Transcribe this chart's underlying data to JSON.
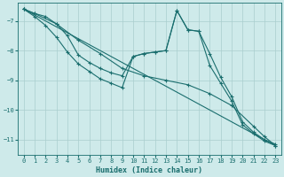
{
  "xlabel": "Humidex (Indice chaleur)",
  "background_color": "#ceeaea",
  "grid_color": "#aacece",
  "line_color": "#1a6e6e",
  "xlim": [
    -0.5,
    23.5
  ],
  "ylim": [
    -11.5,
    -6.4
  ],
  "yticks": [
    -7,
    -8,
    -9,
    -10,
    -11
  ],
  "xticks": [
    0,
    1,
    2,
    3,
    4,
    5,
    6,
    7,
    8,
    9,
    10,
    11,
    12,
    13,
    14,
    15,
    16,
    17,
    18,
    19,
    20,
    21,
    22,
    23
  ],
  "series1": [
    [
      0,
      -6.6
    ],
    [
      1,
      -6.75
    ],
    [
      2,
      -6.85
    ],
    [
      3,
      -7.1
    ],
    [
      4,
      -7.5
    ],
    [
      5,
      -8.15
    ],
    [
      6,
      -8.4
    ],
    [
      7,
      -8.6
    ],
    [
      8,
      -8.75
    ],
    [
      9,
      -8.85
    ],
    [
      10,
      -8.2
    ],
    [
      11,
      -8.1
    ],
    [
      12,
      -8.05
    ],
    [
      13,
      -8.0
    ],
    [
      14,
      -6.65
    ],
    [
      15,
      -7.3
    ],
    [
      16,
      -7.35
    ],
    [
      17,
      -8.1
    ],
    [
      18,
      -8.9
    ],
    [
      19,
      -9.55
    ],
    [
      20,
      -10.4
    ],
    [
      21,
      -10.75
    ],
    [
      22,
      -11.0
    ],
    [
      23,
      -11.15
    ]
  ],
  "series2": [
    [
      0,
      -6.6
    ],
    [
      1,
      -6.85
    ],
    [
      2,
      -7.15
    ],
    [
      3,
      -7.55
    ],
    [
      4,
      -8.05
    ],
    [
      5,
      -8.45
    ],
    [
      6,
      -8.7
    ],
    [
      7,
      -8.95
    ],
    [
      8,
      -9.1
    ],
    [
      9,
      -9.25
    ],
    [
      10,
      -8.2
    ],
    [
      11,
      -8.1
    ],
    [
      12,
      -8.05
    ],
    [
      13,
      -8.0
    ],
    [
      14,
      -6.65
    ],
    [
      15,
      -7.3
    ],
    [
      16,
      -7.35
    ],
    [
      17,
      -8.5
    ],
    [
      18,
      -9.1
    ],
    [
      19,
      -9.7
    ],
    [
      20,
      -10.5
    ],
    [
      21,
      -10.8
    ],
    [
      22,
      -11.05
    ],
    [
      23,
      -11.2
    ]
  ],
  "series3": [
    [
      0,
      -6.6
    ],
    [
      1,
      -6.75
    ],
    [
      3,
      -7.1
    ],
    [
      5,
      -7.65
    ],
    [
      7,
      -8.1
    ],
    [
      9,
      -8.6
    ],
    [
      11,
      -8.85
    ],
    [
      13,
      -9.0
    ],
    [
      15,
      -9.15
    ],
    [
      17,
      -9.45
    ],
    [
      19,
      -9.85
    ],
    [
      21,
      -10.55
    ],
    [
      22,
      -10.9
    ],
    [
      23,
      -11.2
    ]
  ],
  "series4": [
    [
      0,
      -6.6
    ],
    [
      23,
      -11.2
    ]
  ]
}
